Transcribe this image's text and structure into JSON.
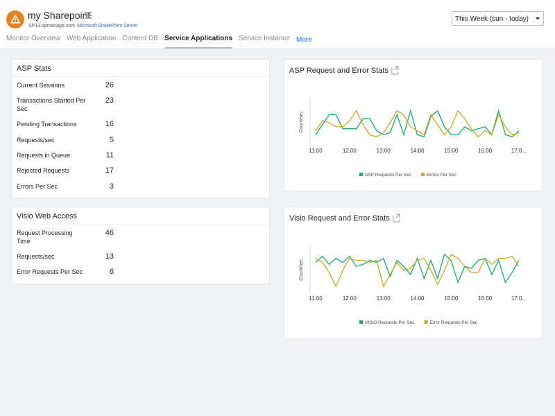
{
  "header": {
    "title": "my Sharepoint",
    "host": "SP13.spmanage.com",
    "server": "Microsoft SharePoint Server",
    "period": "This Week (sun - today)"
  },
  "tabs": [
    {
      "label": "Monitor Overview"
    },
    {
      "label": "Web Application"
    },
    {
      "label": "Content DB"
    },
    {
      "label": "Service Applications",
      "active": true
    },
    {
      "label": "Service Instance"
    },
    {
      "label": "More",
      "link": true
    }
  ],
  "asp_stats": {
    "title": "ASP Stats",
    "rows": [
      {
        "label": "Current Sessions",
        "value": 26
      },
      {
        "label": "Transactions Started Per Sec",
        "value": 23
      },
      {
        "label": "Pending Transactions",
        "value": 16
      },
      {
        "label": "Requests/sec",
        "value": 5
      },
      {
        "label": "Requests in Queue",
        "value": 11
      },
      {
        "label": "Rejected Requests",
        "value": 17
      },
      {
        "label": "Errors Per Sec",
        "value": 3
      }
    ]
  },
  "visio_stats": {
    "title": "Visio Web Access",
    "rows": [
      {
        "label": "Request Processing Time",
        "value": 46
      },
      {
        "label": "Requests/sec",
        "value": 13
      },
      {
        "label": "Error Requests Per Sec",
        "value": 6
      }
    ]
  },
  "chart_data": [
    {
      "type": "line",
      "title": "ASP Request and Error Stats",
      "y_label": "Count/sec",
      "categories": [
        "11:00",
        null,
        null,
        null,
        null,
        "12:00",
        null,
        null,
        null,
        null,
        "13:00",
        null,
        null,
        null,
        null,
        "14:00",
        null,
        null,
        null,
        null,
        "15:00",
        null,
        null,
        null,
        null,
        "16:00",
        null,
        null,
        null,
        null,
        "17:0..."
      ],
      "ylim": [
        0,
        100
      ],
      "series": [
        {
          "name": "ASP Requests Per Sec",
          "color": "#1aa86c",
          "values": [
            20,
            45,
            70,
            70,
            35,
            35,
            35,
            60,
            60,
            30,
            20,
            25,
            70,
            20,
            80,
            20,
            15,
            65,
            80,
            40,
            20,
            20,
            40,
            30,
            35,
            40,
            20,
            80,
            20,
            15,
            30
          ]
        },
        {
          "name": "Errors Per Sec",
          "color": "#c9a92a",
          "values": [
            30,
            55,
            50,
            40,
            40,
            55,
            80,
            45,
            20,
            15,
            25,
            50,
            80,
            70,
            40,
            30,
            20,
            70,
            45,
            20,
            40,
            80,
            60,
            35,
            15,
            30,
            20,
            70,
            40,
            20,
            25
          ]
        }
      ]
    },
    {
      "type": "line",
      "title": "Visio Request and Error Stats",
      "y_label": "Count/sec",
      "categories": [
        "11:00",
        null,
        null,
        null,
        null,
        "12:00",
        null,
        null,
        null,
        null,
        "13:00",
        null,
        null,
        null,
        null,
        "14:00",
        null,
        null,
        null,
        null,
        "15:00",
        null,
        null,
        null,
        null,
        "16:00",
        null,
        null,
        null,
        null,
        "17:0..."
      ],
      "ylim": [
        0,
        100
      ],
      "series": [
        {
          "name": "VISIO Requests Per Sec",
          "color": "#1aa86c",
          "values": [
            70,
            85,
            65,
            80,
            70,
            85,
            60,
            65,
            75,
            70,
            80,
            35,
            75,
            60,
            40,
            80,
            30,
            75,
            30,
            90,
            75,
            20,
            60,
            55,
            75,
            80,
            40,
            75,
            20,
            45,
            75
          ]
        },
        {
          "name": "Error Requests Per Sec",
          "color": "#c9a92a",
          "values": [
            80,
            70,
            45,
            10,
            50,
            80,
            75,
            75,
            70,
            75,
            10,
            40,
            70,
            50,
            55,
            75,
            80,
            50,
            15,
            50,
            90,
            80,
            60,
            45,
            45,
            80,
            65,
            80,
            80,
            85,
            60
          ]
        }
      ]
    }
  ]
}
